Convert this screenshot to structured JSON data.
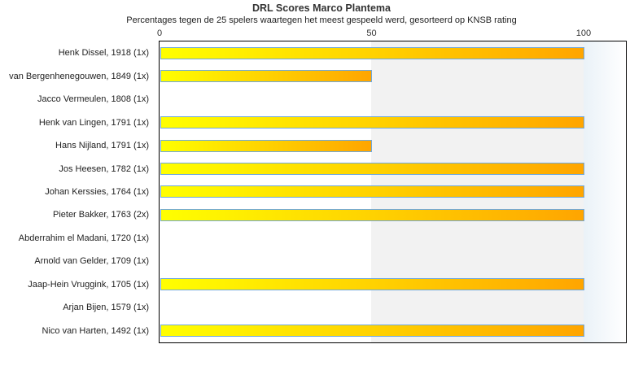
{
  "chart_data": {
    "type": "bar",
    "orientation": "horizontal",
    "title": "DRL Scores Marco Plantema",
    "subtitle": "Percentages tegen de 25 spelers waartegen het meest gespeeld werd, gesorteerd op KNSB rating",
    "categories": [
      "Henk Dissel, 1918 (1x)",
      "van Bergenhenegouwen, 1849 (1x)",
      "Jacco Vermeulen, 1808 (1x)",
      "Henk van Lingen, 1791 (1x)",
      "Hans Nijland, 1791 (1x)",
      "Jos Heesen, 1782 (1x)",
      "Johan Kerssies, 1764 (1x)",
      "Pieter Bakker, 1763 (2x)",
      "Abderrahim el Madani, 1720 (1x)",
      "Arnold van Gelder, 1709 (1x)",
      "Jaap-Hein Vruggink, 1705 (1x)",
      "Arjan Bijen, 1579 (1x)",
      "Nico van Harten, 1492 (1x)"
    ],
    "values": [
      100,
      50,
      0,
      100,
      50,
      100,
      100,
      100,
      0,
      0,
      100,
      0,
      100
    ],
    "xlabel": "",
    "ylabel": "",
    "xlim": [
      0,
      110
    ],
    "xticks": [
      0,
      50,
      100
    ],
    "grid": false,
    "legend": "none",
    "colors": {
      "bar_gradient_start": "#ffff00",
      "bar_gradient_end": "#ffa500",
      "bar_border": "#6fa8dc",
      "band_gray": "#f2f2f2",
      "band_edge_start": "#eaf2f8",
      "plot_border": "#000000",
      "text": "#333333"
    }
  }
}
